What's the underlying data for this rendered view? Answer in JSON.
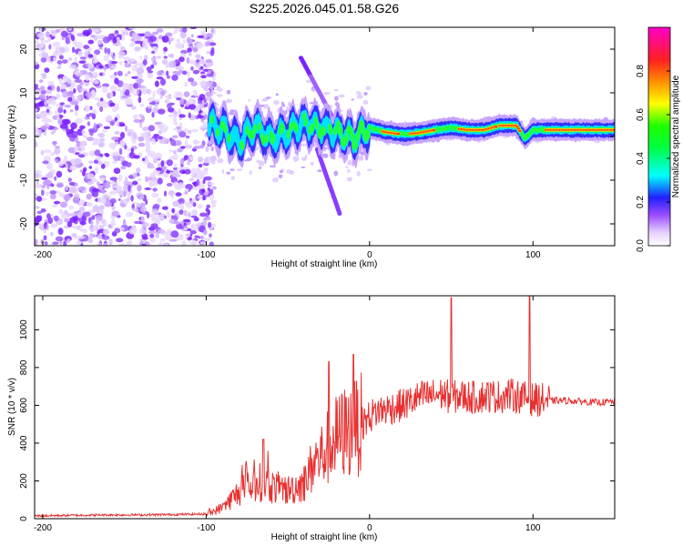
{
  "title": "S225.2026.045.01.58.G26",
  "chart_data": [
    {
      "type": "heatmap",
      "name": "spectrogram",
      "xlabel": "Height of straight line (km)",
      "ylabel": "Frequency (Hz)",
      "xlim": [
        -205,
        150
      ],
      "ylim": [
        -25,
        25
      ],
      "xticks": [
        -200,
        -100,
        0,
        100
      ],
      "xtick_labels": [
        "-200",
        "-100",
        "0",
        "100"
      ],
      "yticks": [
        20,
        10,
        0,
        -10,
        -20
      ],
      "ytick_labels": [
        "20",
        "10",
        "0",
        "-10",
        "-20"
      ],
      "colorbar": {
        "label": "Normalized spectral amplitude",
        "range": [
          0,
          1
        ],
        "ticks": [
          0.0,
          0.2,
          0.4,
          0.6,
          0.8
        ],
        "tick_labels": [
          "0.0",
          "0.2",
          "0.4",
          "0.6",
          "0.8"
        ]
      },
      "ridge": {
        "x": [
          -100,
          -90,
          -80,
          -70,
          -60,
          -50,
          -40,
          -30,
          -20,
          -10,
          0,
          10,
          20,
          30,
          40,
          50,
          60,
          70,
          80,
          90,
          95,
          100,
          110,
          120,
          130,
          140,
          150
        ],
        "freq": [
          3,
          1.5,
          -1,
          2,
          -0.5,
          1,
          3,
          2,
          1,
          -0.5,
          2,
          1,
          0.5,
          0.8,
          1.5,
          2,
          1.5,
          1.5,
          2.5,
          2.5,
          -0.5,
          1.5,
          1.5,
          1.5,
          1.5,
          1.5,
          1.5
        ]
      }
    },
    {
      "type": "line",
      "name": "snr",
      "xlabel": "Height of straight line (km)",
      "ylabel": "SNR (10 * v/v)",
      "xlim": [
        -205,
        150
      ],
      "ylim": [
        0,
        1180
      ],
      "xticks": [
        -200,
        -100,
        0,
        100
      ],
      "xtick_labels": [
        "-200",
        "-100",
        "0",
        "100"
      ],
      "yticks": [
        0,
        200,
        400,
        600,
        800,
        1000
      ],
      "ytick_labels": [
        "0",
        "200",
        "400",
        "600",
        "800",
        "1000"
      ],
      "series": [
        {
          "name": "SNR",
          "color": "#e83030",
          "x": [
            -205,
            -180,
            -160,
            -140,
            -120,
            -100,
            -95,
            -90,
            -85,
            -80,
            -75,
            -70,
            -65,
            -60,
            -55,
            -50,
            -45,
            -40,
            -35,
            -30,
            -25,
            -20,
            -15,
            -10,
            -5,
            0,
            5,
            10,
            15,
            20,
            25,
            30,
            35,
            40,
            45,
            50,
            55,
            60,
            65,
            70,
            75,
            80,
            85,
            90,
            95,
            100,
            105,
            110,
            120,
            130,
            140,
            150
          ],
          "y": [
            15,
            18,
            20,
            20,
            22,
            25,
            40,
            60,
            100,
            140,
            160,
            180,
            200,
            170,
            160,
            150,
            170,
            190,
            280,
            330,
            380,
            430,
            460,
            470,
            500,
            540,
            570,
            580,
            590,
            600,
            620,
            640,
            650,
            655,
            660,
            640,
            650,
            645,
            640,
            650,
            650,
            645,
            655,
            650,
            640,
            630,
            630,
            625,
            625,
            620,
            615,
            620
          ]
        }
      ],
      "peaks": [
        {
          "x": 50,
          "y": 1170
        },
        {
          "x": 98,
          "y": 1180
        },
        {
          "x": -10,
          "y": 870
        },
        {
          "x": -25,
          "y": 830
        },
        {
          "x": -65,
          "y": 420
        }
      ]
    }
  ]
}
